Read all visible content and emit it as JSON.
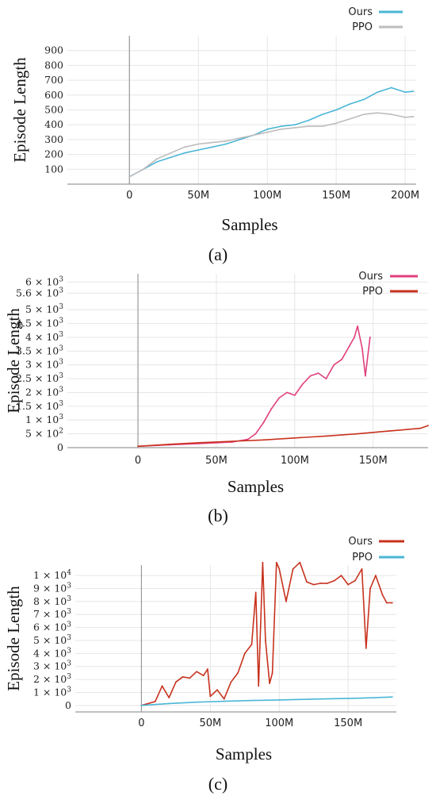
{
  "chart_data": [
    {
      "type": "line",
      "caption": "(a)",
      "xlabel": "Samples",
      "ylabel": "Episode Length",
      "x_ticks": [
        "0",
        "50M",
        "100M",
        "150M",
        "200M"
      ],
      "y_ticks": [
        "100",
        "200",
        "300",
        "400",
        "500",
        "600",
        "700",
        "800",
        "900"
      ],
      "xlim": [
        -45000000,
        208000000
      ],
      "ylim": [
        0,
        1000
      ],
      "legend_position": "top-right",
      "series": [
        {
          "name": "Ours",
          "color": "#4bb6d6",
          "x": [
            0,
            10000000,
            20000000,
            30000000,
            40000000,
            50000000,
            60000000,
            70000000,
            80000000,
            90000000,
            100000000,
            110000000,
            120000000,
            130000000,
            140000000,
            150000000,
            160000000,
            170000000,
            180000000,
            190000000,
            200000000,
            206000000
          ],
          "y": [
            50,
            100,
            150,
            180,
            210,
            230,
            250,
            270,
            300,
            330,
            370,
            390,
            400,
            430,
            470,
            500,
            540,
            570,
            620,
            650,
            620,
            625
          ]
        },
        {
          "name": "PPO",
          "color": "#bdbdbd",
          "x": [
            0,
            10000000,
            20000000,
            30000000,
            40000000,
            50000000,
            60000000,
            70000000,
            80000000,
            90000000,
            100000000,
            110000000,
            120000000,
            130000000,
            140000000,
            150000000,
            160000000,
            170000000,
            180000000,
            190000000,
            200000000,
            206000000
          ],
          "y": [
            50,
            100,
            170,
            210,
            250,
            270,
            280,
            290,
            310,
            330,
            350,
            370,
            380,
            390,
            390,
            410,
            440,
            470,
            480,
            470,
            450,
            455
          ]
        }
      ]
    },
    {
      "type": "line",
      "caption": "(b)",
      "xlabel": "Samples",
      "ylabel": "Episode Length",
      "x_ticks": [
        "0",
        "50M",
        "100M",
        "150M"
      ],
      "y_ticks": [
        "0",
        "5 × 10^2",
        "1 × 10^3",
        "1.5 × 10^3",
        "2 × 10^3",
        "2.5 × 10^3",
        "3 × 10^3",
        "3.5 × 10^3",
        "4 × 10^3",
        "4.5 × 10^3",
        "5 × 10^3",
        "5.6 × 10^3",
        "6 × 10^3"
      ],
      "xlim": [
        -45000000,
        185000000
      ],
      "ylim": [
        0,
        6300
      ],
      "legend_position": "top-right",
      "series": [
        {
          "name": "Ours",
          "color": "#e0407c",
          "x": [
            0,
            20000000,
            40000000,
            60000000,
            70000000,
            75000000,
            80000000,
            85000000,
            90000000,
            95000000,
            100000000,
            105000000,
            110000000,
            115000000,
            120000000,
            125000000,
            130000000,
            135000000,
            138000000,
            140000000,
            143000000,
            145000000,
            148000000
          ],
          "y": [
            50,
            100,
            150,
            200,
            300,
            500,
            900,
            1400,
            1800,
            2000,
            1900,
            2300,
            2600,
            2700,
            2500,
            3000,
            3200,
            3700,
            4000,
            4400,
            3600,
            2600,
            4000
          ]
        },
        {
          "name": "PPO",
          "color": "#c8321e",
          "x": [
            0,
            20000000,
            40000000,
            60000000,
            80000000,
            100000000,
            120000000,
            140000000,
            160000000,
            180000000,
            185000000
          ],
          "y": [
            50,
            120,
            180,
            230,
            280,
            350,
            420,
            500,
            600,
            700,
            800
          ]
        }
      ]
    },
    {
      "type": "line",
      "caption": "(c)",
      "xlabel": "Samples",
      "ylabel": "Episode Length",
      "x_ticks": [
        "0",
        "50M",
        "100M",
        "150M"
      ],
      "y_ticks": [
        "0",
        "1 × 10^3",
        "2 × 10^3",
        "3 × 10^3",
        "4 × 10^3",
        "5 × 10^3",
        "6 × 10^3",
        "7 × 10^3",
        "8 × 10^3",
        "9 × 10^3",
        "1 × 10^4"
      ],
      "xlim": [
        -48000000,
        185000000
      ],
      "ylim": [
        -500,
        10800
      ],
      "legend_position": "top-right",
      "series": [
        {
          "name": "Ours",
          "color": "#c8321e",
          "x": [
            0,
            10000000,
            15000000,
            20000000,
            25000000,
            30000000,
            35000000,
            40000000,
            45000000,
            48000000,
            50000000,
            55000000,
            60000000,
            65000000,
            70000000,
            75000000,
            80000000,
            83000000,
            85000000,
            88000000,
            90000000,
            93000000,
            95000000,
            98000000,
            100000000,
            105000000,
            110000000,
            115000000,
            120000000,
            125000000,
            130000000,
            135000000,
            140000000,
            145000000,
            150000000,
            155000000,
            160000000,
            163000000,
            166000000,
            170000000,
            175000000,
            178000000,
            182000000
          ],
          "y": [
            0,
            300,
            1500,
            600,
            1800,
            2200,
            2100,
            2600,
            2300,
            2800,
            700,
            1200,
            500,
            1800,
            2500,
            4000,
            4700,
            8700,
            1500,
            11000,
            5000,
            1700,
            2500,
            11000,
            10500,
            8000,
            10500,
            11000,
            9500,
            9300,
            9400,
            9400,
            9600,
            10000,
            9300,
            9600,
            10500,
            4400,
            9000,
            10000,
            8500,
            7900,
            7900
          ]
        },
        {
          "name": "PPO",
          "color": "#4bb6d6",
          "x": [
            0,
            20000000,
            40000000,
            60000000,
            80000000,
            100000000,
            120000000,
            140000000,
            160000000,
            182000000
          ],
          "y": [
            0,
            150,
            250,
            320,
            380,
            420,
            470,
            520,
            560,
            650
          ]
        }
      ]
    }
  ]
}
